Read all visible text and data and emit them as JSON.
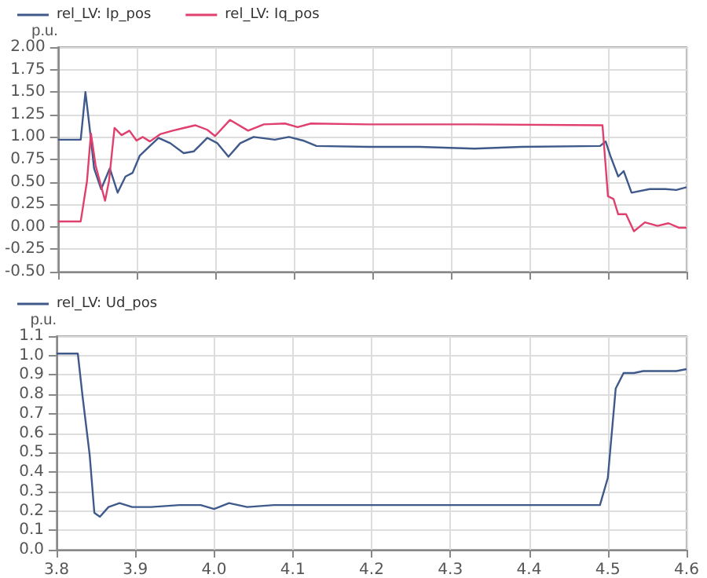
{
  "chart_data": [
    {
      "type": "line",
      "ylabel": "p.u.",
      "legend": "top left",
      "grid": true,
      "tick_labels": "y",
      "xlim": [
        3.8,
        4.6
      ],
      "xticks": [
        {
          "value": 3.8,
          "label": null
        },
        {
          "value": 3.9,
          "label": null
        },
        {
          "value": 4.0,
          "label": null
        },
        {
          "value": 4.1,
          "label": null
        },
        {
          "value": 4.2,
          "label": null
        },
        {
          "value": 4.3,
          "label": null
        },
        {
          "value": 4.4,
          "label": null
        },
        {
          "value": 4.5,
          "label": null
        },
        {
          "value": 4.6,
          "label": null
        }
      ],
      "ylim": [
        -0.5,
        2.0
      ],
      "yticks": [
        {
          "value": -0.5,
          "label": "-0.50"
        },
        {
          "value": -0.25,
          "label": "-0.25"
        },
        {
          "value": 0,
          "label": "0.00"
        },
        {
          "value": 0.25,
          "label": "0.25"
        },
        {
          "value": 0.5,
          "label": "0.50"
        },
        {
          "value": 0.75,
          "label": "0.75"
        },
        {
          "value": 1.0,
          "label": "1.00"
        },
        {
          "value": 1.25,
          "label": "1.25"
        },
        {
          "value": 1.5,
          "label": "1.50"
        },
        {
          "value": 1.75,
          "label": "1.75"
        },
        {
          "value": 2.0,
          "label": "2.00"
        }
      ],
      "series": [
        {
          "name": "rel_LV: Ip_pos",
          "color": "#3f5a8a",
          "x": [
            3.8,
            3.829,
            3.835,
            3.84,
            3.846,
            3.855,
            3.866,
            3.876,
            3.886,
            3.895,
            3.904,
            3.916,
            3.928,
            3.943,
            3.96,
            3.973,
            3.99,
            4.003,
            4.017,
            4.032,
            4.049,
            4.076,
            4.094,
            4.112,
            4.129,
            4.195,
            4.26,
            4.33,
            4.39,
            4.49,
            4.497,
            4.503,
            4.513,
            4.52,
            4.53,
            4.553,
            4.573,
            4.587,
            4.6
          ],
          "values": [
            0.97,
            0.97,
            1.5,
            1.13,
            0.65,
            0.42,
            0.65,
            0.38,
            0.56,
            0.6,
            0.79,
            0.89,
            0.99,
            0.93,
            0.82,
            0.84,
            0.99,
            0.93,
            0.78,
            0.93,
            1.0,
            0.97,
            1.0,
            0.96,
            0.9,
            0.89,
            0.89,
            0.87,
            0.89,
            0.9,
            0.95,
            0.79,
            0.56,
            0.62,
            0.38,
            0.42,
            0.42,
            0.41,
            0.44
          ]
        },
        {
          "name": "rel_LV: Iq_pos",
          "color": "#e0406e",
          "x": [
            3.8,
            3.829,
            3.837,
            3.842,
            3.848,
            3.86,
            3.865,
            3.872,
            3.881,
            3.891,
            3.9,
            3.908,
            3.917,
            3.93,
            3.946,
            3.96,
            3.975,
            3.99,
            4.0,
            4.019,
            4.042,
            4.062,
            4.089,
            4.105,
            4.122,
            4.195,
            4.33,
            4.493,
            4.5,
            4.507,
            4.513,
            4.523,
            4.533,
            4.547,
            4.563,
            4.577,
            4.59,
            4.6
          ],
          "values": [
            0.06,
            0.06,
            0.51,
            1.04,
            0.68,
            0.29,
            0.51,
            1.1,
            1.02,
            1.07,
            0.96,
            1.0,
            0.95,
            1.03,
            1.07,
            1.1,
            1.13,
            1.08,
            1.01,
            1.19,
            1.07,
            1.14,
            1.15,
            1.11,
            1.15,
            1.14,
            1.14,
            1.13,
            0.34,
            0.31,
            0.14,
            0.14,
            -0.05,
            0.05,
            0.01,
            0.04,
            -0.01,
            -0.01
          ]
        }
      ]
    },
    {
      "type": "line",
      "ylabel": "p.u.",
      "legend": "top left",
      "grid": true,
      "xlim": [
        3.8,
        4.6
      ],
      "xticks": [
        {
          "value": 3.8,
          "label": "3.8"
        },
        {
          "value": 3.9,
          "label": "3.9"
        },
        {
          "value": 4.0,
          "label": "4.0"
        },
        {
          "value": 4.1,
          "label": "4.1"
        },
        {
          "value": 4.2,
          "label": "4.2"
        },
        {
          "value": 4.3,
          "label": "4.3"
        },
        {
          "value": 4.4,
          "label": "4.4"
        },
        {
          "value": 4.5,
          "label": "4.5"
        },
        {
          "value": 4.6,
          "label": "4.6"
        }
      ],
      "ylim": [
        0,
        1.1
      ],
      "yticks": [
        {
          "value": 0,
          "label": "0.0"
        },
        {
          "value": 0.1,
          "label": "0.1"
        },
        {
          "value": 0.2,
          "label": "0.2"
        },
        {
          "value": 0.3,
          "label": "0.3"
        },
        {
          "value": 0.4,
          "label": "0.4"
        },
        {
          "value": 0.5,
          "label": "0.5"
        },
        {
          "value": 0.6,
          "label": "0.6"
        },
        {
          "value": 0.7,
          "label": "0.7"
        },
        {
          "value": 0.8,
          "label": "0.8"
        },
        {
          "value": 0.9,
          "label": "0.9"
        },
        {
          "value": 1.0,
          "label": "1.0"
        },
        {
          "value": 1.1,
          "label": "1.1"
        }
      ],
      "series": [
        {
          "name": "rel_LV: Ud_pos",
          "color": "#3f5a8a",
          "x": [
            3.8,
            3.827,
            3.833,
            3.842,
            3.848,
            3.855,
            3.866,
            3.88,
            3.896,
            3.92,
            3.956,
            3.983,
            4.0,
            4.019,
            4.042,
            4.076,
            4.13,
            4.26,
            4.39,
            4.49,
            4.5,
            4.51,
            4.52,
            4.533,
            4.545,
            4.566,
            4.587,
            4.6
          ],
          "values": [
            1.01,
            1.01,
            0.79,
            0.49,
            0.19,
            0.17,
            0.22,
            0.24,
            0.22,
            0.22,
            0.23,
            0.23,
            0.21,
            0.24,
            0.22,
            0.23,
            0.23,
            0.23,
            0.23,
            0.23,
            0.37,
            0.83,
            0.91,
            0.91,
            0.92,
            0.92,
            0.92,
            0.93
          ]
        }
      ]
    }
  ]
}
